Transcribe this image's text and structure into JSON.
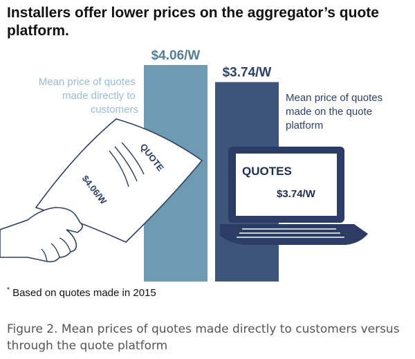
{
  "title": "Installers offer lower prices on the aggregator’s quote platform.",
  "footnote": {
    "marker": "*",
    "text": "Based on quotes made in 2015"
  },
  "caption": "Figure 2. Mean prices of quotes made directly to customers versus through the quote platform",
  "quote_paper": {
    "word": "QUOTE",
    "price": "$4.06/W"
  },
  "laptop_screen": {
    "heading": "QUOTES",
    "price": "$3.74/W"
  },
  "colors": {
    "direct": "#6f9bb2",
    "platform": "#3e5479",
    "direct_text": "#9bbbd0",
    "platform_text": "#2f4168"
  },
  "chart_data": {
    "type": "bar",
    "title": "Installers offer lower prices on the aggregator’s quote platform.",
    "categories": [
      "Mean price of quotes made directly to customers",
      "Mean price of quotes made on the quote platform"
    ],
    "category_lines": [
      [
        "Mean price of quotes",
        "made directly to",
        "customers"
      ],
      [
        "Mean price of quotes",
        "made on the quote",
        "platform"
      ]
    ],
    "values": [
      4.06,
      3.74
    ],
    "value_labels": [
      "$4.06/W",
      "$3.74/W"
    ],
    "unit": "$/W",
    "ylim": [
      0,
      4.06
    ],
    "xlabel": "",
    "ylabel": "",
    "grid": false,
    "legend": "none"
  }
}
